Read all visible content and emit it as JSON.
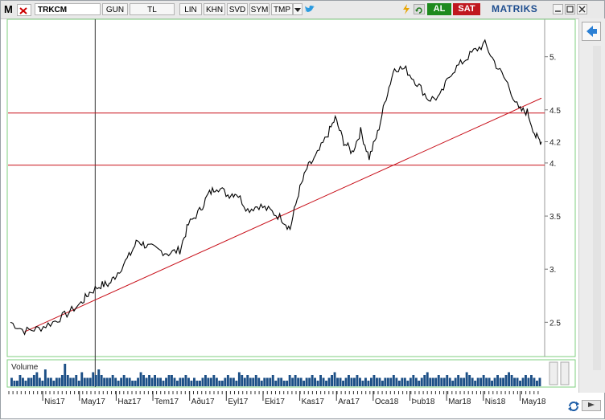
{
  "toolbar": {
    "logo": "M",
    "symbol": "TRKCM",
    "buttons": [
      "GUN",
      "TL",
      "LIN",
      "KHN",
      "SVD",
      "SYM",
      "TMP"
    ],
    "buy_label": "AL",
    "sell_label": "SAT",
    "brand": "MATRIKS"
  },
  "colors": {
    "buy": "#1e8a1e",
    "sell": "#c0181f",
    "trendline": "#c8101a",
    "price": "#000000",
    "volume": "#1c4f86",
    "border": "#7fcf7f"
  },
  "chart_data": {
    "type": "line",
    "price_axis": {
      "min": 2.2,
      "max": 5.3,
      "ticks": [
        2.5,
        3,
        3.5,
        4,
        4.2,
        4.5,
        5
      ]
    },
    "tick_labels": [
      "2.5",
      "3.",
      "3.5",
      "4.",
      "4.2",
      "4.5",
      "5."
    ],
    "x_labels": [
      "Nis17",
      "May17",
      "Haz17",
      "Tem17",
      "Ağu17",
      "Eyl17",
      "Eki17",
      "Kas17",
      "Ara17",
      "Oca18",
      "Şub18",
      "Mar18",
      "Nis18",
      "May18"
    ],
    "x_label_display": [
      "Nis17",
      "May17",
      "Haz17",
      "Tem17",
      "Aðu17",
      "Eyl17",
      "Eki17",
      "Kas17",
      "Ara17",
      "Oca18",
      "Þub18",
      "Mar18",
      "Nis18",
      "May18"
    ],
    "price_points": [
      [
        0,
        2.5
      ],
      [
        5,
        2.42
      ],
      [
        10,
        2.44
      ],
      [
        15,
        2.5
      ],
      [
        20,
        2.58
      ],
      [
        25,
        2.68
      ],
      [
        28,
        2.78
      ],
      [
        32,
        2.85
      ],
      [
        35,
        2.86
      ],
      [
        38,
        2.97
      ],
      [
        42,
        3.12
      ],
      [
        45,
        3.27
      ],
      [
        48,
        3.22
      ],
      [
        52,
        3.18
      ],
      [
        56,
        3.15
      ],
      [
        60,
        3.18
      ],
      [
        63,
        3.42
      ],
      [
        67,
        3.55
      ],
      [
        70,
        3.7
      ],
      [
        73,
        3.78
      ],
      [
        77,
        3.7
      ],
      [
        80,
        3.72
      ],
      [
        84,
        3.56
      ],
      [
        88,
        3.6
      ],
      [
        92,
        3.55
      ],
      [
        96,
        3.48
      ],
      [
        99,
        3.38
      ],
      [
        102,
        3.72
      ],
      [
        105,
        3.95
      ],
      [
        108,
        4.05
      ],
      [
        112,
        4.25
      ],
      [
        115,
        4.42
      ],
      [
        118,
        4.2
      ],
      [
        121,
        4.1
      ],
      [
        124,
        4.3
      ],
      [
        127,
        4.05
      ],
      [
        130,
        4.28
      ],
      [
        133,
        4.62
      ],
      [
        136,
        4.9
      ],
      [
        140,
        4.88
      ],
      [
        144,
        4.75
      ],
      [
        148,
        4.6
      ],
      [
        152,
        4.62
      ],
      [
        156,
        4.85
      ],
      [
        160,
        4.95
      ],
      [
        164,
        5.05
      ],
      [
        168,
        5.12
      ],
      [
        172,
        4.92
      ],
      [
        176,
        4.75
      ],
      [
        180,
        4.5
      ],
      [
        183,
        4.48
      ],
      [
        186,
        4.25
      ],
      [
        188,
        4.2
      ]
    ],
    "x_domain": [
      0,
      188
    ],
    "label_positions": [
      12,
      25,
      38,
      51,
      64,
      77,
      90,
      103,
      116,
      129,
      142,
      155,
      168,
      181
    ],
    "horizontal_lines": [
      4.47,
      3.98
    ],
    "trendline": [
      [
        5,
        2.41
      ],
      [
        188,
        4.61
      ]
    ],
    "crosshair_x": 30,
    "volume_label": "Volume",
    "volume": [
      3,
      2,
      2,
      4,
      3,
      2,
      3,
      3,
      4,
      5,
      3,
      2,
      6,
      3,
      3,
      2,
      3,
      3,
      4,
      8,
      4,
      3,
      3,
      4,
      2,
      5,
      3,
      3,
      3,
      5,
      4,
      6,
      4,
      3,
      3,
      3,
      4,
      3,
      2,
      3,
      4,
      3,
      3,
      2,
      2,
      3,
      5,
      4,
      3,
      4,
      3,
      4,
      3,
      3,
      2,
      3,
      4,
      4,
      3,
      2,
      3,
      3,
      4,
      3,
      2,
      3,
      2,
      2,
      3,
      4,
      3,
      3,
      4,
      3,
      2,
      2,
      3,
      4,
      3,
      3,
      2,
      5,
      4,
      3,
      4,
      3,
      3,
      4,
      3,
      2,
      3,
      3,
      3,
      4,
      2,
      3,
      3,
      2,
      2,
      4,
      3,
      4,
      3,
      3,
      2,
      3,
      3,
      4,
      3,
      2,
      4,
      3,
      2,
      3,
      4,
      5,
      3,
      3,
      2,
      3,
      4,
      3,
      3,
      4,
      3,
      2,
      3,
      2,
      3,
      4,
      3,
      3,
      2,
      3,
      3,
      3,
      4,
      3,
      2,
      3,
      3,
      2,
      3,
      4,
      3,
      2,
      3,
      4,
      5,
      3,
      3,
      3,
      4,
      3,
      3,
      4,
      3,
      2,
      3,
      4,
      3,
      3,
      5,
      4,
      3,
      2,
      3,
      3,
      4,
      3,
      3,
      2,
      3,
      4,
      3,
      3,
      4,
      5,
      4,
      3,
      3,
      2,
      3,
      4,
      3,
      4,
      3,
      2,
      3
    ]
  }
}
